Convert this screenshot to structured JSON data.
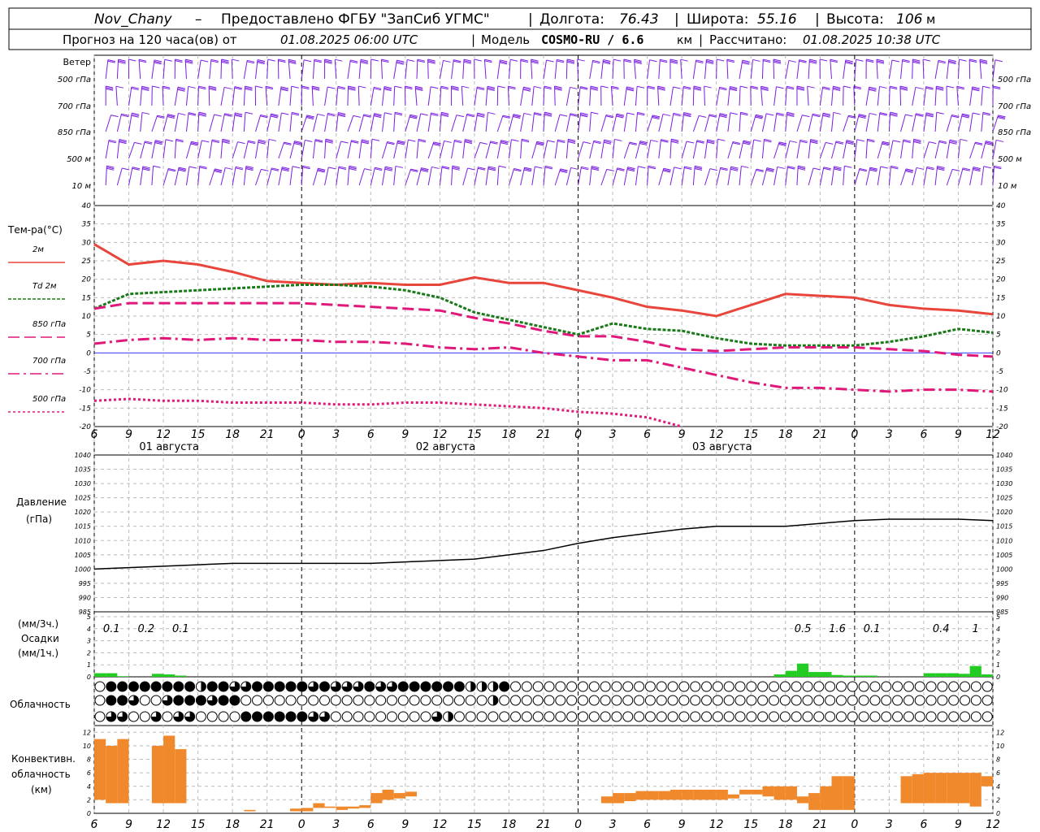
{
  "header": {
    "station": "Nov_Chany",
    "provider": "Предоставлено ФГБУ \"ЗапСиб УГМС\"",
    "lon_label": "Долгота:",
    "lon": "76.43",
    "lat_label": "Широта:",
    "lat": "55.16",
    "alt_label": "Высота:",
    "alt": "106",
    "alt_unit": "м",
    "forecast_prefix": "Прогноз на 120 часа(ов) от",
    "forecast_time": "01.08.2025 06:00 UTC",
    "model_label": "Модель",
    "model": "COSMO-RU / 6.6",
    "model_unit": "км",
    "computed_label": "Рассчитано:",
    "computed": "01.08.2025 10:38 UTC"
  },
  "colors": {
    "t2m": "#e8453c",
    "td2m": "#1a7a1a",
    "levels": "#e0187a",
    "wind": "#7a1ee0",
    "precip": "#22cc22",
    "conv": "#f0892c",
    "zero_line": "#3a3aff",
    "grid": "#bbbbbb"
  },
  "wind_panel": {
    "title": "Ветер",
    "levels": [
      "500 гПа",
      "700 гПа",
      "850 гПа",
      "500 м",
      "10  м"
    ]
  },
  "time_axis": {
    "hour_labels": [
      "6",
      "9",
      "12",
      "15",
      "18",
      "21",
      "0",
      "3",
      "6",
      "9",
      "12",
      "15",
      "18",
      "21",
      "0",
      "3",
      "6",
      "9",
      "12",
      "15",
      "18",
      "21",
      "0",
      "3",
      "6",
      "9",
      "12"
    ],
    "date_labels": [
      "01 августа",
      "02 августа",
      "03 августа"
    ]
  },
  "chart_data": [
    {
      "type": "line",
      "title": "Тем-ра(°C)",
      "ylim": [
        -20,
        40
      ],
      "yticks": [
        -20,
        -15,
        -10,
        -5,
        0,
        5,
        10,
        15,
        20,
        25,
        30,
        35,
        40
      ],
      "x_hours": [
        0,
        3,
        6,
        9,
        12,
        15,
        18,
        21,
        24,
        27,
        30,
        33,
        36,
        39,
        42,
        45,
        48,
        51,
        54,
        57,
        60,
        63,
        66,
        69,
        72,
        75,
        78
      ],
      "series": [
        {
          "name": "2м",
          "values": [
            29.5,
            24,
            25,
            24,
            22,
            19.5,
            19,
            18.5,
            19,
            18.5,
            18.5,
            20.5,
            19,
            19,
            17,
            15,
            12.5,
            11.5,
            10,
            13,
            16,
            15.5,
            15,
            13,
            12,
            11.5,
            10.5
          ]
        },
        {
          "name": "Td  2м",
          "values": [
            12,
            16,
            16.5,
            17,
            17.5,
            18,
            18.5,
            18.5,
            18,
            17,
            15,
            11,
            9,
            7,
            5,
            8,
            6.5,
            6,
            4,
            2.5,
            2,
            2,
            2,
            3,
            4.5,
            6.5,
            5.5
          ]
        },
        {
          "name": "850 гПа",
          "values": [
            12,
            13.5,
            13.5,
            13.5,
            13.5,
            13.5,
            13.5,
            13,
            12.5,
            12,
            11.5,
            9.5,
            8,
            6,
            4.5,
            4.5,
            3,
            1,
            0.5,
            1,
            1.5,
            1.5,
            1.5,
            1,
            0.5,
            -0.5,
            -1
          ]
        },
        {
          "name": "700 гПа",
          "values": [
            2.5,
            3.5,
            4,
            3.5,
            4,
            3.5,
            3.5,
            3,
            3,
            2.5,
            1.5,
            1,
            1.5,
            0,
            -1,
            -2,
            -2,
            -4,
            -6,
            -8,
            -9.5,
            -9.5,
            -10,
            -10.5,
            -10,
            -10,
            -10.5
          ]
        },
        {
          "name": "500 гПа",
          "values": [
            -13,
            -12.5,
            -13,
            -13,
            -13.5,
            -13.5,
            -13.5,
            -14,
            -14,
            -13.5,
            -13.5,
            -14,
            -14.5,
            -15,
            -16,
            -16.5,
            -17.5,
            -20
          ]
        }
      ]
    },
    {
      "type": "line",
      "title": "Давление",
      "ylabel": "(гПа)",
      "ylim": [
        985,
        1040
      ],
      "yticks": [
        985,
        990,
        995,
        1000,
        1005,
        1010,
        1015,
        1020,
        1025,
        1030,
        1035,
        1040
      ],
      "x_hours": [
        0,
        3,
        6,
        9,
        12,
        15,
        18,
        21,
        24,
        27,
        30,
        33,
        36,
        39,
        42,
        45,
        48,
        51,
        54,
        57,
        60,
        63,
        66,
        69,
        72,
        75,
        78
      ],
      "values": [
        1000,
        1000.5,
        1001,
        1001.5,
        1002,
        1002,
        1002,
        1002,
        1002,
        1002.5,
        1003,
        1003.5,
        1005,
        1006.5,
        1009,
        1011,
        1012.5,
        1014,
        1015,
        1015,
        1015,
        1016,
        1017,
        1017.5,
        1017.5,
        1017.5,
        1017
      ]
    },
    {
      "type": "bar",
      "title": "Осадки",
      "ylabel_top": "(мм/3ч.)",
      "ylabel_bottom": "(мм/1ч.)",
      "ylim": [
        0,
        5
      ],
      "yticks": [
        0,
        1,
        2,
        3,
        4,
        5
      ],
      "bars_hours": [
        1,
        2,
        3,
        6,
        7,
        8,
        60,
        61,
        62,
        63,
        64,
        65,
        66,
        67,
        68,
        73,
        74,
        75,
        76,
        77,
        78
      ],
      "bars_values": [
        0.3,
        0.3,
        0.05,
        0.25,
        0.2,
        0.1,
        0.2,
        0.5,
        1.1,
        0.4,
        0.4,
        0.15,
        0.1,
        0.1,
        0.1,
        0.3,
        0.3,
        0.3,
        0.25,
        0.9,
        0.2
      ],
      "labels_3h": [
        {
          "hour": 1.5,
          "text": "0.1"
        },
        {
          "hour": 4.5,
          "text": "0.2"
        },
        {
          "hour": 7.5,
          "text": "0.1"
        },
        {
          "hour": 61.5,
          "text": "0.5"
        },
        {
          "hour": 64.5,
          "text": "1.6"
        },
        {
          "hour": 67.5,
          "text": "0.1"
        },
        {
          "hour": 73.5,
          "text": "0.4"
        },
        {
          "hour": 76.5,
          "text": "1"
        }
      ]
    },
    {
      "type": "table",
      "title": "Облачность",
      "cover_codes": "0 = ясно, 4 = сплошная",
      "rows": [
        [
          0,
          4,
          4,
          4,
          4,
          4,
          4,
          4,
          4,
          2,
          4,
          4,
          3,
          3,
          4,
          4,
          4,
          4,
          4,
          3,
          4,
          3,
          3,
          3,
          4,
          3,
          3,
          4,
          4,
          4,
          4,
          4,
          4,
          2,
          2,
          2,
          4,
          0,
          0,
          0,
          0,
          0,
          0,
          0,
          0,
          0,
          0,
          0,
          0,
          0,
          0,
          0,
          0,
          0,
          0,
          0,
          0,
          0,
          0,
          0,
          0,
          0,
          0,
          0,
          0,
          0,
          0,
          0,
          0,
          0,
          0,
          0,
          0,
          0,
          0,
          0,
          0,
          0,
          0,
          0
        ],
        [
          0,
          4,
          4,
          3,
          0,
          0,
          3,
          4,
          4,
          4,
          3,
          4,
          4,
          0,
          0,
          0,
          0,
          0,
          0,
          0,
          0,
          0,
          0,
          0,
          0,
          0,
          0,
          0,
          0,
          0,
          0,
          0,
          0,
          0,
          0,
          2,
          0,
          0,
          0,
          0,
          0,
          0,
          0,
          0,
          0,
          0,
          0,
          0,
          0,
          0,
          0,
          0,
          0,
          0,
          0,
          0,
          0,
          0,
          0,
          0,
          0,
          0,
          0,
          0,
          0,
          0,
          0,
          0,
          0,
          0,
          0,
          0,
          0,
          0,
          0,
          0,
          0,
          0,
          0,
          0
        ],
        [
          0,
          3,
          3,
          0,
          0,
          3,
          0,
          3,
          3,
          0,
          0,
          0,
          0,
          4,
          4,
          4,
          4,
          4,
          4,
          3,
          3,
          0,
          0,
          0,
          0,
          0,
          0,
          0,
          0,
          0,
          3,
          2,
          0,
          0,
          0,
          0,
          0,
          0,
          0,
          0,
          0,
          0,
          0,
          0,
          0,
          0,
          0,
          0,
          0,
          0,
          0,
          0,
          0,
          0,
          0,
          0,
          0,
          0,
          0,
          0,
          0,
          0,
          0,
          0,
          0,
          0,
          0,
          0,
          0,
          0,
          0,
          0,
          0,
          0,
          0,
          0,
          0,
          0,
          0,
          0
        ]
      ]
    },
    {
      "type": "bar",
      "title": "Конвективн.",
      "ylabel_mid": "облачность",
      "ylabel": "(км)",
      "ylim": [
        0,
        13
      ],
      "yticks": [
        0,
        2,
        4,
        6,
        8,
        10,
        12
      ],
      "bars": [
        {
          "hour": 1,
          "base": 2,
          "top": 11
        },
        {
          "hour": 2,
          "base": 1.5,
          "top": 10
        },
        {
          "hour": 3,
          "base": 1.5,
          "top": 11
        },
        {
          "hour": 6,
          "base": 1.5,
          "top": 10
        },
        {
          "hour": 7,
          "base": 1.5,
          "top": 11.5
        },
        {
          "hour": 8,
          "base": 1.5,
          "top": 9.5
        },
        {
          "hour": 14,
          "base": 0.3,
          "top": 0.5
        },
        {
          "hour": 18,
          "base": 0.3,
          "top": 0.7
        },
        {
          "hour": 19,
          "base": 0.3,
          "top": 0.8
        },
        {
          "hour": 20,
          "base": 0.8,
          "top": 1.5
        },
        {
          "hour": 21,
          "base": 0.8,
          "top": 1
        },
        {
          "hour": 22,
          "base": 0.5,
          "top": 1
        },
        {
          "hour": 23,
          "base": 0.7,
          "top": 1
        },
        {
          "hour": 24,
          "base": 0.8,
          "top": 1.2
        },
        {
          "hour": 25,
          "base": 1.5,
          "top": 3
        },
        {
          "hour": 26,
          "base": 2,
          "top": 3.5
        },
        {
          "hour": 27,
          "base": 2.2,
          "top": 3
        },
        {
          "hour": 28,
          "base": 2.5,
          "top": 3.2
        },
        {
          "hour": 45,
          "base": 1.5,
          "top": 2.5
        },
        {
          "hour": 46,
          "base": 1.5,
          "top": 3
        },
        {
          "hour": 47,
          "base": 1.8,
          "top": 3
        },
        {
          "hour": 48,
          "base": 2,
          "top": 3.3
        },
        {
          "hour": 49,
          "base": 2,
          "top": 3.3
        },
        {
          "hour": 50,
          "base": 2,
          "top": 3.3
        },
        {
          "hour": 51,
          "base": 2,
          "top": 3.5
        },
        {
          "hour": 52,
          "base": 2,
          "top": 3.5
        },
        {
          "hour": 53,
          "base": 2,
          "top": 3.5
        },
        {
          "hour": 54,
          "base": 2,
          "top": 3.5
        },
        {
          "hour": 55,
          "base": 2,
          "top": 3.5
        },
        {
          "hour": 56,
          "base": 2.2,
          "top": 2.8
        },
        {
          "hour": 57,
          "base": 2.8,
          "top": 3.5
        },
        {
          "hour": 58,
          "base": 2.8,
          "top": 3.5
        },
        {
          "hour": 59,
          "base": 2.5,
          "top": 4
        },
        {
          "hour": 60,
          "base": 2,
          "top": 4
        },
        {
          "hour": 61,
          "base": 2,
          "top": 4
        },
        {
          "hour": 62,
          "base": 1.5,
          "top": 2.5
        },
        {
          "hour": 63,
          "base": 0.5,
          "top": 3
        },
        {
          "hour": 64,
          "base": 0.5,
          "top": 4
        },
        {
          "hour": 65,
          "base": 0.5,
          "top": 5.5
        },
        {
          "hour": 66,
          "base": 0.5,
          "top": 5.5
        },
        {
          "hour": 71,
          "base": 1.5,
          "top": 5.5
        },
        {
          "hour": 72,
          "base": 1.5,
          "top": 5.8
        },
        {
          "hour": 73,
          "base": 1.5,
          "top": 6
        },
        {
          "hour": 74,
          "base": 1.5,
          "top": 6
        },
        {
          "hour": 75,
          "base": 1.5,
          "top": 6
        },
        {
          "hour": 76,
          "base": 1.5,
          "top": 6
        },
        {
          "hour": 77,
          "base": 1,
          "top": 6
        },
        {
          "hour": 78,
          "base": 4,
          "top": 5.5
        }
      ]
    }
  ]
}
